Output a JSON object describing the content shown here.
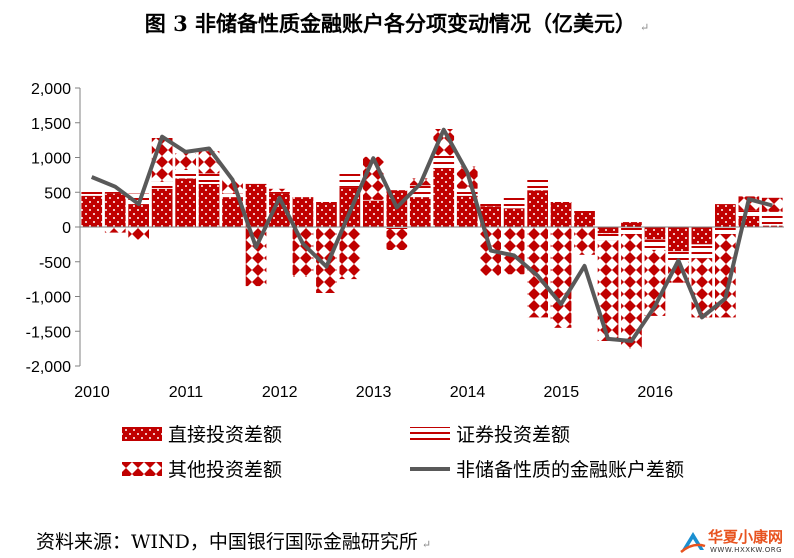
{
  "title": "图 3  非储备性质金融账户各分项变动情况（亿美元）",
  "source": "资料来源：WIND，中国银行国际金融研究所",
  "watermark": {
    "name": "华夏小康网",
    "url": "WWW.HXXKW.ORG"
  },
  "chart_data": {
    "type": "bar",
    "stacked": true,
    "ylim": [
      -2000,
      2000
    ],
    "yticks": [
      2000,
      1500,
      1000,
      500,
      0,
      -500,
      -1000,
      -1500,
      -2000
    ],
    "ytick_labels": [
      "2,000",
      "1,500",
      "1,000",
      "500",
      "0",
      "-500",
      "-1,000",
      "-1,500",
      "-2,000"
    ],
    "x_year_labels": [
      "2010",
      "2011",
      "2012",
      "2013",
      "2014",
      "2015",
      "2016"
    ],
    "quarters_per_year": 4,
    "series": [
      {
        "name": "直接投资差额",
        "pattern": "dense-red",
        "values": [
          450,
          480,
          330,
          550,
          700,
          620,
          430,
          620,
          480,
          430,
          360,
          570,
          380,
          530,
          430,
          850,
          450,
          300,
          270,
          530,
          360,
          230,
          -90,
          70,
          -180,
          -350,
          -250,
          330,
          160,
          20
        ]
      },
      {
        "name": "证券投资差额",
        "pattern": "horizontal-lines",
        "values": [
          60,
          40,
          150,
          100,
          120,
          150,
          50,
          0,
          30,
          10,
          0,
          200,
          10,
          -30,
          170,
          180,
          100,
          50,
          150,
          200,
          0,
          0,
          -100,
          -100,
          -150,
          -150,
          -200,
          -100,
          80,
          200
        ]
      },
      {
        "name": "其他投资差额",
        "pattern": "diamond-lattice",
        "values": [
          0,
          -80,
          -180,
          630,
          240,
          320,
          200,
          -850,
          40,
          -720,
          -950,
          -750,
          620,
          -300,
          100,
          380,
          320,
          -700,
          -680,
          -1300,
          -1450,
          -400,
          -1450,
          -1650,
          -950,
          -300,
          -850,
          -1200,
          200,
          200
        ]
      },
      {
        "name": "非储备性质的金融账户差额",
        "type": "line",
        "color": "#595959",
        "values": [
          720,
          580,
          330,
          1300,
          1080,
          1130,
          680,
          -290,
          420,
          -240,
          -570,
          220,
          990,
          280,
          620,
          1400,
          790,
          -340,
          -410,
          -700,
          -1110,
          -560,
          -1610,
          -1640,
          -1140,
          -480,
          -1300,
          -1030,
          400,
          310
        ]
      }
    ],
    "legend": {
      "placement": "bottom",
      "columns": 2
    }
  }
}
